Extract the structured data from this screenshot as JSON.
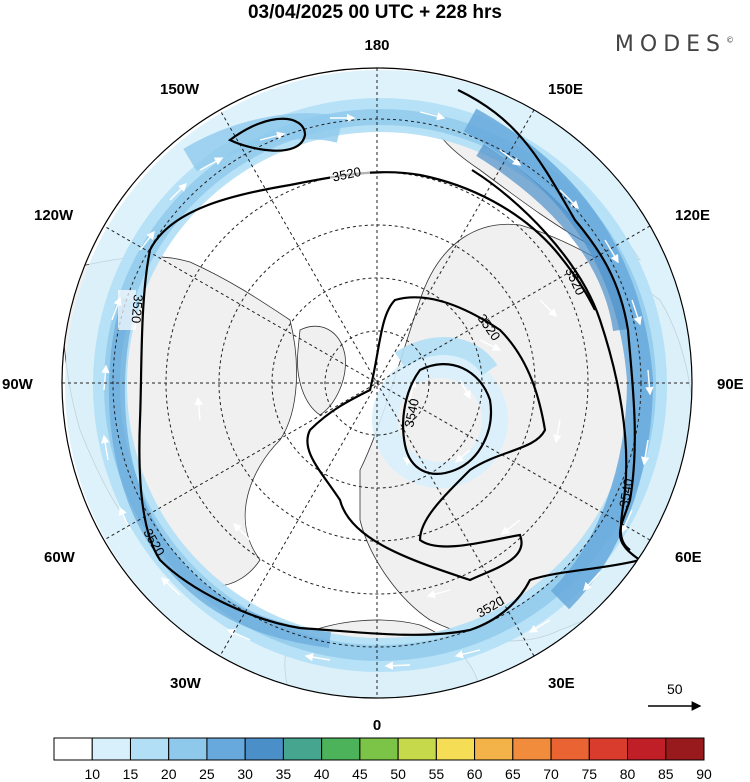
{
  "title": "03/04/2025  00 UTC  + 228 hrs",
  "brand": "MODES",
  "brand_mark": "©",
  "longitude_labels": {
    "top": "180",
    "bottom": "0",
    "left": "90W",
    "right": "90E",
    "upper_left_1": "150W",
    "upper_left_2": "120W",
    "lower_left_1": "60W",
    "lower_left_2": "30W",
    "upper_right_1": "150E",
    "upper_right_2": "120E",
    "lower_right_1": "60E",
    "lower_right_2": "30E"
  },
  "contour_labels": {
    "c1": "3520",
    "c2": "3520",
    "c3": "3520",
    "c4": "3520",
    "c5": "3520",
    "c6": "3520",
    "c7": "3540",
    "c8": "3540"
  },
  "vector_reference": "50",
  "colorbar": {
    "labels": [
      "10",
      "15",
      "20",
      "25",
      "30",
      "35",
      "40",
      "45",
      "50",
      "55",
      "60",
      "65",
      "70",
      "75",
      "80",
      "85",
      "90"
    ],
    "colors": [
      "#ffffff",
      "#d8f0fb",
      "#b2dff5",
      "#8ec9ec",
      "#67a9dc",
      "#4b8fc8",
      "#45a58e",
      "#4db35b",
      "#7bc447",
      "#c5d94a",
      "#f5dd55",
      "#f4b349",
      "#f08c3c",
      "#ea6333",
      "#d93b2d",
      "#c11f28",
      "#991a1d"
    ]
  },
  "colors": {
    "land": "#f0f0f0",
    "contour": "#000000",
    "graticule": "#333333"
  }
}
